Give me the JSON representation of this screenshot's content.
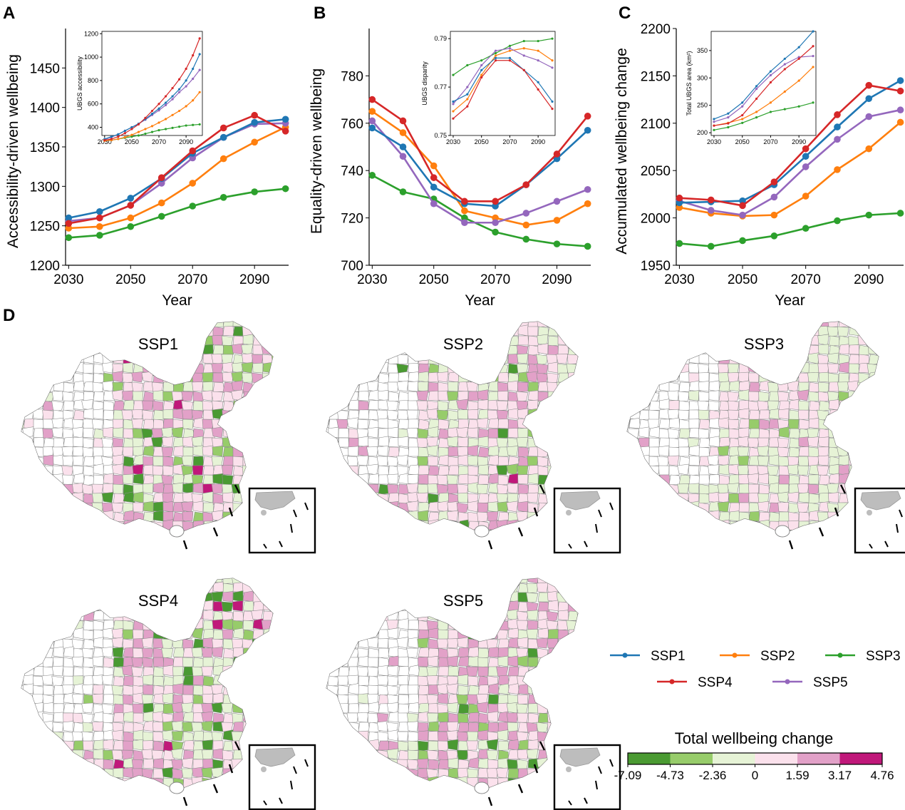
{
  "panel_letters": [
    "A",
    "B",
    "C",
    "D"
  ],
  "colors": {
    "SSP1": "#1f77b4",
    "SSP2": "#ff7f0e",
    "SSP3": "#2ca02c",
    "SSP4": "#d62728",
    "SSP5": "#9467bd"
  },
  "chart_data": [
    {
      "type": "line",
      "id": "A",
      "ylabel": "Accessibility-driven wellbeing",
      "xlabel": "Year",
      "x": [
        2030,
        2040,
        2050,
        2060,
        2070,
        2080,
        2090,
        2100
      ],
      "xticks": [
        2030,
        2050,
        2070,
        2090
      ],
      "xlim": [
        2029,
        2101
      ],
      "ylim": [
        1200,
        1500
      ],
      "yticks": [
        1200,
        1250,
        1300,
        1350,
        1400,
        1450
      ],
      "series": [
        {
          "name": "SSP1",
          "values": [
            1260,
            1268,
            1285,
            1310,
            1342,
            1362,
            1381,
            1385
          ]
        },
        {
          "name": "SSP2",
          "values": [
            1247,
            1249,
            1260,
            1279,
            1304,
            1335,
            1356,
            1375
          ]
        },
        {
          "name": "SSP3",
          "values": [
            1235,
            1238,
            1249,
            1262,
            1275,
            1286,
            1293,
            1297
          ]
        },
        {
          "name": "SSP4",
          "values": [
            1253,
            1260,
            1276,
            1311,
            1345,
            1374,
            1390,
            1370
          ]
        },
        {
          "name": "SSP5",
          "values": [
            1256,
            1260,
            1276,
            1304,
            1336,
            1362,
            1379,
            1380
          ]
        }
      ],
      "inset": {
        "ylabel": "UBGS accessibility",
        "x": [
          2030,
          2035,
          2040,
          2045,
          2050,
          2055,
          2060,
          2065,
          2070,
          2075,
          2080,
          2085,
          2090,
          2095,
          2100
        ],
        "xticks": [
          2030,
          2050,
          2070,
          2090
        ],
        "xlim": [
          2028,
          2102
        ],
        "ylim": [
          330,
          1220
        ],
        "yticks": [
          400,
          600,
          800,
          1000,
          1200
        ],
        "series": [
          {
            "name": "SSP1",
            "values": [
              300,
              320,
              340,
              370,
              400,
              430,
              470,
              515,
              560,
              610,
              665,
              725,
              800,
              900,
              1025
            ]
          },
          {
            "name": "SSP2",
            "values": [
              285,
              290,
              300,
              315,
              335,
              360,
              385,
              410,
              440,
              470,
              505,
              540,
              580,
              630,
              700
            ]
          },
          {
            "name": "SSP3",
            "values": [
              285,
              290,
              300,
              310,
              320,
              330,
              345,
              360,
              375,
              385,
              395,
              405,
              415,
              420,
              425
            ]
          },
          {
            "name": "SSP4",
            "values": [
              290,
              300,
              320,
              350,
              385,
              425,
              480,
              540,
              600,
              665,
              735,
              810,
              900,
              1015,
              1160
            ]
          },
          {
            "name": "SSP5",
            "values": [
              295,
              315,
              340,
              370,
              400,
              430,
              465,
              505,
              545,
              590,
              640,
              700,
              750,
              815,
              890
            ]
          }
        ]
      }
    },
    {
      "type": "line",
      "id": "B",
      "ylabel": "Equality-driven wellbeing",
      "xlabel": "Year",
      "x": [
        2030,
        2040,
        2050,
        2060,
        2070,
        2080,
        2090,
        2100
      ],
      "xticks": [
        2030,
        2050,
        2070,
        2090
      ],
      "xlim": [
        2029,
        2101
      ],
      "ylim": [
        700,
        800
      ],
      "yticks": [
        700,
        720,
        740,
        760,
        780
      ],
      "series": [
        {
          "name": "SSP1",
          "values": [
            758,
            750,
            733,
            726,
            725,
            734,
            745,
            757
          ]
        },
        {
          "name": "SSP2",
          "values": [
            765,
            756,
            742,
            723,
            720,
            717,
            719,
            726
          ]
        },
        {
          "name": "SSP3",
          "values": [
            738,
            731,
            728,
            720,
            714,
            711,
            709,
            708
          ]
        },
        {
          "name": "SSP4",
          "values": [
            770,
            761,
            737,
            727,
            727,
            734,
            747,
            763
          ]
        },
        {
          "name": "SSP5",
          "values": [
            761,
            746,
            726,
            718,
            718,
            722,
            727,
            732
          ]
        }
      ],
      "inset": {
        "ylabel": "UBGS disparity",
        "x": [
          2030,
          2040,
          2050,
          2060,
          2070,
          2080,
          2090,
          2100
        ],
        "xticks": [
          2030,
          2050,
          2070,
          2090
        ],
        "xlim": [
          2028,
          2102
        ],
        "ylim": [
          0.75,
          0.793
        ],
        "yticks": [
          0.75,
          0.77,
          0.79
        ],
        "ytick_labels": [
          "0.75",
          "0.77",
          "0.79"
        ],
        "series": [
          {
            "name": "SSP1",
            "values": [
              0.764,
              0.767,
              0.777,
              0.782,
              0.782,
              0.777,
              0.772,
              0.764
            ]
          },
          {
            "name": "SSP2",
            "values": [
              0.76,
              0.765,
              0.775,
              0.783,
              0.785,
              0.786,
              0.785,
              0.781
            ]
          },
          {
            "name": "SSP3",
            "values": [
              0.775,
              0.779,
              0.781,
              0.784,
              0.787,
              0.789,
              0.789,
              0.79
            ]
          },
          {
            "name": "SSP4",
            "values": [
              0.757,
              0.762,
              0.774,
              0.781,
              0.781,
              0.777,
              0.769,
              0.761
            ]
          },
          {
            "name": "SSP5",
            "values": [
              0.763,
              0.77,
              0.779,
              0.785,
              0.786,
              0.783,
              0.781,
              0.778
            ]
          }
        ]
      }
    },
    {
      "type": "line",
      "id": "C",
      "ylabel": "Accumulated wellbeing change",
      "xlabel": "Year",
      "x": [
        2030,
        2040,
        2050,
        2060,
        2070,
        2080,
        2090,
        2100
      ],
      "xticks": [
        2030,
        2050,
        2070,
        2090
      ],
      "xlim": [
        2029,
        2101
      ],
      "ylim": [
        1950,
        2200
      ],
      "yticks": [
        1950,
        2000,
        2050,
        2100,
        2150,
        2200
      ],
      "series": [
        {
          "name": "SSP1",
          "values": [
            2016,
            2017,
            2018,
            2035,
            2065,
            2096,
            2126,
            2145
          ]
        },
        {
          "name": "SSP2",
          "values": [
            2011,
            2005,
            2002,
            2003,
            2023,
            2051,
            2073,
            2101
          ]
        },
        {
          "name": "SSP3",
          "values": [
            1973,
            1970,
            1976,
            1981,
            1989,
            1997,
            2003,
            2005
          ]
        },
        {
          "name": "SSP4",
          "values": [
            2021,
            2019,
            2013,
            2038,
            2073,
            2109,
            2140,
            2134
          ]
        },
        {
          "name": "SSP5",
          "values": [
            2018,
            2008,
            2003,
            2022,
            2054,
            2083,
            2107,
            2114
          ]
        }
      ],
      "inset": {
        "ylabel": "Total UBGS area (km²)",
        "x": [
          2030,
          2040,
          2050,
          2060,
          2070,
          2080,
          2090,
          2100
        ],
        "xticks": [
          2030,
          2050,
          2070,
          2090
        ],
        "xlim": [
          2028,
          2102
        ],
        "ylim": [
          195,
          385
        ],
        "yticks": [
          200,
          250,
          300,
          350
        ],
        "series": [
          {
            "name": "SSP1",
            "values": [
              225,
              235,
              255,
              285,
              312,
              335,
              356,
              385
            ]
          },
          {
            "name": "SSP2",
            "values": [
              213,
              218,
              225,
              238,
              255,
              275,
              295,
              320
            ]
          },
          {
            "name": "SSP3",
            "values": [
              205,
              210,
              218,
              228,
              238,
              243,
              248,
              255
            ]
          },
          {
            "name": "SSP4",
            "values": [
              213,
              217,
              232,
              262,
              292,
              316,
              335,
              358
            ]
          },
          {
            "name": "SSP5",
            "values": [
              220,
              228,
              248,
              280,
              305,
              325,
              338,
              340
            ]
          }
        ]
      }
    }
  ],
  "maps": [
    {
      "title": "SSP1"
    },
    {
      "title": "SSP2"
    },
    {
      "title": "SSP3"
    },
    {
      "title": "SSP4"
    },
    {
      "title": "SSP5"
    }
  ],
  "legend": {
    "entries": [
      "SSP1",
      "SSP2",
      "SSP3",
      "SSP4",
      "SSP5"
    ]
  },
  "colorbar": {
    "title": "Total wellbeing change",
    "colors": [
      "#4a9a32",
      "#97cc6a",
      "#e6f3d6",
      "#fbe1ec",
      "#e2a1c8",
      "#c0187a"
    ],
    "tick_labels": [
      "-7.09",
      "-4.73",
      "-2.36",
      "0",
      "1.59",
      "3.17",
      "4.76"
    ]
  }
}
